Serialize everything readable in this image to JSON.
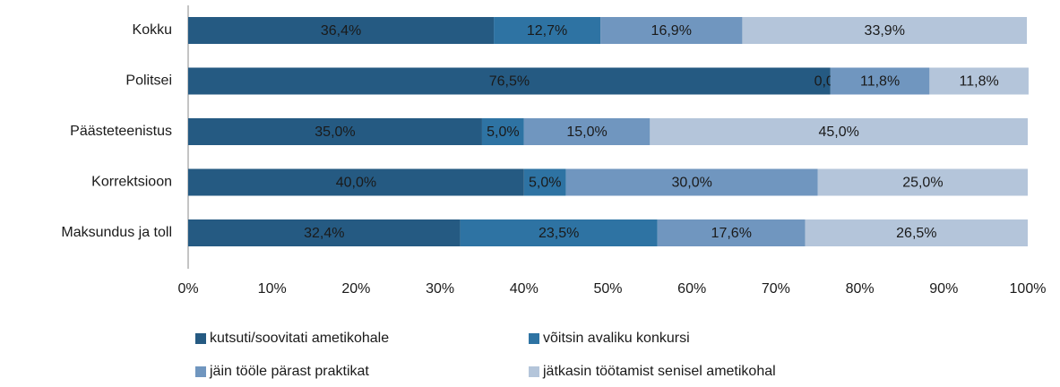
{
  "chart_data": {
    "type": "stacked_bar_horizontal",
    "categories": [
      "Kokku",
      "Politsei",
      "Päästeteenistus",
      "Korrektsioon",
      "Maksundus ja toll"
    ],
    "series": [
      {
        "name": "kutsuti/soovitati ametikohale",
        "color": "#255a82",
        "values": [
          36.4,
          76.5,
          35.0,
          40.0,
          32.4
        ],
        "value_labels": [
          "36,4%",
          "76,5%",
          "35,0%",
          "40,0%",
          "32,4%"
        ]
      },
      {
        "name": "võitsin avaliku konkursi",
        "color": "#2e73a3",
        "values": [
          12.7,
          0.0,
          5.0,
          5.0,
          23.5
        ],
        "value_labels": [
          "12,7%",
          "0,0%",
          "5,0%",
          "5,0%",
          "23,5%"
        ]
      },
      {
        "name": "jäin tööle pärast praktikat",
        "color": "#7096bf",
        "values": [
          16.9,
          11.8,
          15.0,
          30.0,
          17.6
        ],
        "value_labels": [
          "16,9%",
          "11,8%",
          "15,0%",
          "30,0%",
          "17,6%"
        ]
      },
      {
        "name": "jätkasin töötamist senisel ametikohal",
        "color": "#b4c5da",
        "values": [
          33.9,
          11.8,
          45.0,
          25.0,
          26.5
        ],
        "value_labels": [
          "33,9%",
          "11,8%",
          "45,0%",
          "25,0%",
          "26,5%"
        ]
      }
    ],
    "xlim": [
      0,
      100
    ],
    "xticks": [
      {
        "value": 0,
        "label": "0%"
      },
      {
        "value": 10,
        "label": "10%"
      },
      {
        "value": 20,
        "label": "20%"
      },
      {
        "value": 30,
        "label": "30%"
      },
      {
        "value": 40,
        "label": "40%"
      },
      {
        "value": 50,
        "label": "50%"
      },
      {
        "value": 60,
        "label": "60%"
      },
      {
        "value": 70,
        "label": "70%"
      },
      {
        "value": 80,
        "label": "80%"
      },
      {
        "value": 90,
        "label": "90%"
      },
      {
        "value": 100,
        "label": "100%"
      }
    ],
    "legend": "bottom"
  }
}
